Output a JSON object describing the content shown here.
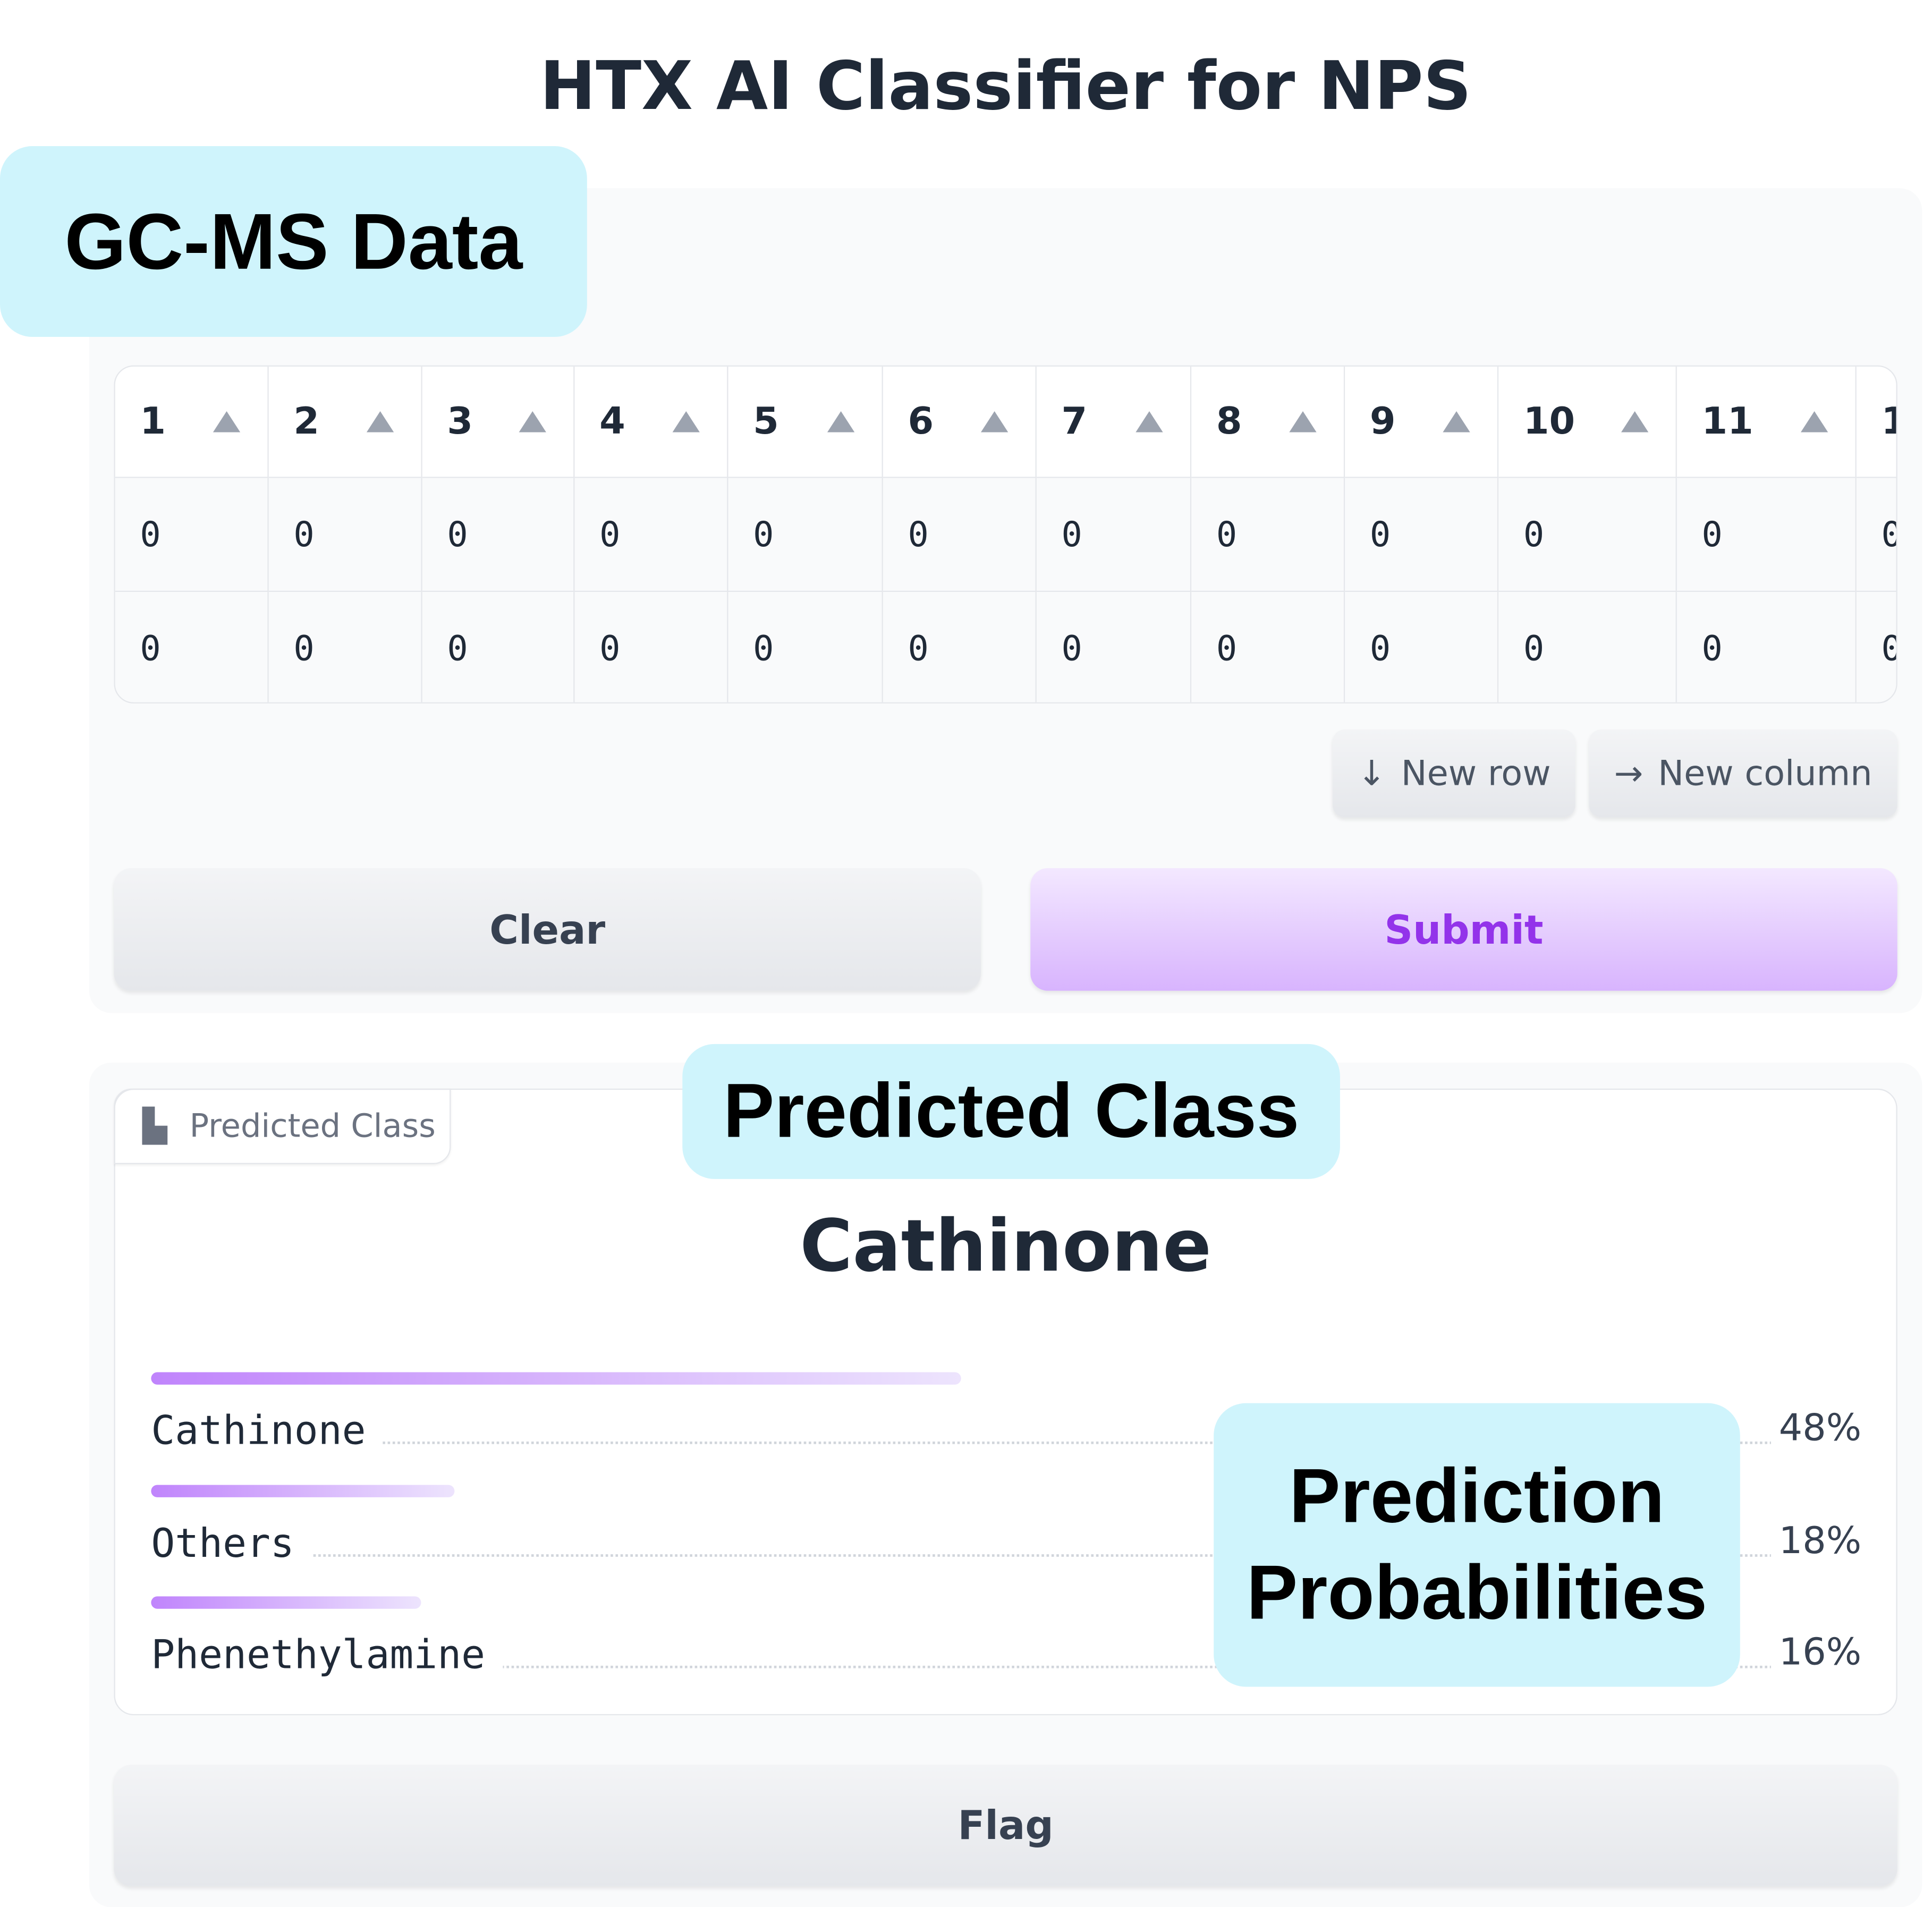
{
  "title": "HTX AI Classifier for NPS",
  "callouts": [
    "GC-MS Data",
    "Predicted Class",
    "Prediction Probabilities"
  ],
  "table": {
    "headers": [
      "1",
      "2",
      "3",
      "4",
      "5",
      "6",
      "7",
      "8",
      "9",
      "10",
      "11",
      "1"
    ],
    "rows": [
      [
        0,
        0,
        0,
        0,
        0,
        0,
        0,
        0,
        0,
        0,
        0,
        0
      ],
      [
        0,
        0,
        0,
        0,
        0,
        0,
        0,
        0,
        0,
        0,
        0,
        0
      ]
    ]
  },
  "buttons": {
    "new_row": "New row",
    "new_column": "New column",
    "clear": "Clear",
    "submit": "Submit",
    "flag": "Flag"
  },
  "output": {
    "label": "Predicted Class",
    "predicted": "Cathinone",
    "probabilities": {
      "labels": [
        "Cathinone",
        "Others",
        "Phenethylamine"
      ],
      "values": [
        48,
        18,
        16
      ],
      "value_labels": [
        "48%",
        "18%",
        "16%"
      ]
    }
  }
}
